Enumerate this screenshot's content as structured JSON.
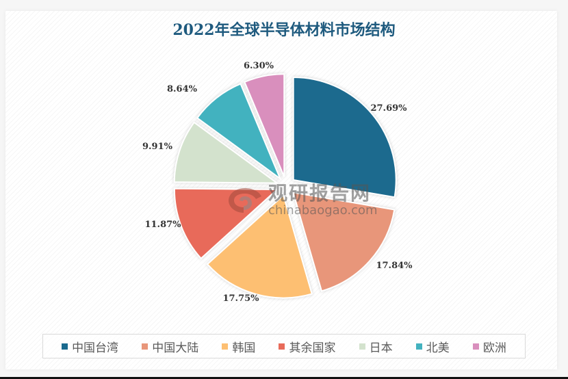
{
  "chart_data": {
    "type": "pie",
    "title": "2022年全球半导体材料市场结构",
    "categories": [
      "中国台湾",
      "中国大陆",
      "韩国",
      "其余国家",
      "日本",
      "北美",
      "欧洲"
    ],
    "values": [
      27.69,
      17.84,
      17.75,
      11.87,
      9.91,
      8.64,
      6.3
    ],
    "value_labels": [
      "27.69%",
      "17.84%",
      "17.75%",
      "11.87%",
      "9.91%",
      "8.64%",
      "6.30%"
    ],
    "colors": [
      "#1a6a8e",
      "#e8967a",
      "#fdbf72",
      "#e86b5a",
      "#d3e2cd",
      "#43b2bf",
      "#d98fbd"
    ],
    "exploded": true,
    "start_angle": "12 o'clock, clockwise",
    "legend_position": "bottom"
  },
  "title": "2022年全球半导体材料市场结构",
  "legend": [
    {
      "label": "中国台湾",
      "color": "#1a6a8e"
    },
    {
      "label": "中国大陆",
      "color": "#e8967a"
    },
    {
      "label": "韩国",
      "color": "#fdbf72"
    },
    {
      "label": "其余国家",
      "color": "#e86b5a"
    },
    {
      "label": "日本",
      "color": "#d3e2cd"
    },
    {
      "label": "北美",
      "color": "#43b2bf"
    },
    {
      "label": "欧洲",
      "color": "#d98fbd"
    }
  ],
  "labels": {
    "l0": "27.69%",
    "l1": "17.84%",
    "l2": "17.75%",
    "l3": "11.87%",
    "l4": "9.91%",
    "l5": "8.64%",
    "l6": "6.30%"
  },
  "watermark": {
    "cn": "观研报告网",
    "en": "chinabaogao.com"
  }
}
